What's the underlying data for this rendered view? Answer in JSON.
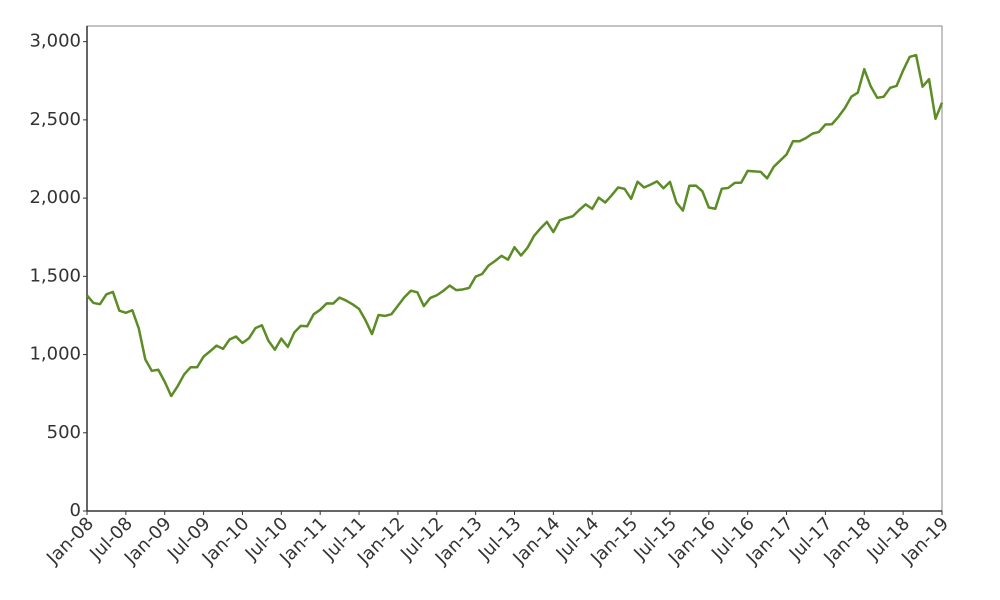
{
  "chart_data": {
    "type": "line",
    "x": [
      "2008-01",
      "2008-02",
      "2008-03",
      "2008-04",
      "2008-05",
      "2008-06",
      "2008-07",
      "2008-08",
      "2008-09",
      "2008-10",
      "2008-11",
      "2008-12",
      "2009-01",
      "2009-02",
      "2009-03",
      "2009-04",
      "2009-05",
      "2009-06",
      "2009-07",
      "2009-08",
      "2009-09",
      "2009-10",
      "2009-11",
      "2009-12",
      "2010-01",
      "2010-02",
      "2010-03",
      "2010-04",
      "2010-05",
      "2010-06",
      "2010-07",
      "2010-08",
      "2010-09",
      "2010-10",
      "2010-11",
      "2010-12",
      "2011-01",
      "2011-02",
      "2011-03",
      "2011-04",
      "2011-05",
      "2011-06",
      "2011-07",
      "2011-08",
      "2011-09",
      "2011-10",
      "2011-11",
      "2011-12",
      "2012-01",
      "2012-02",
      "2012-03",
      "2012-04",
      "2012-05",
      "2012-06",
      "2012-07",
      "2012-08",
      "2012-09",
      "2012-10",
      "2012-11",
      "2012-12",
      "2013-01",
      "2013-02",
      "2013-03",
      "2013-04",
      "2013-05",
      "2013-06",
      "2013-07",
      "2013-08",
      "2013-09",
      "2013-10",
      "2013-11",
      "2013-12",
      "2014-01",
      "2014-02",
      "2014-03",
      "2014-04",
      "2014-05",
      "2014-06",
      "2014-07",
      "2014-08",
      "2014-09",
      "2014-10",
      "2014-11",
      "2014-12",
      "2015-01",
      "2015-02",
      "2015-03",
      "2015-04",
      "2015-05",
      "2015-06",
      "2015-07",
      "2015-08",
      "2015-09",
      "2015-10",
      "2015-11",
      "2015-12",
      "2016-01",
      "2016-02",
      "2016-03",
      "2016-04",
      "2016-05",
      "2016-06",
      "2016-07",
      "2016-08",
      "2016-09",
      "2016-10",
      "2016-11",
      "2016-12",
      "2017-01",
      "2017-02",
      "2017-03",
      "2017-04",
      "2017-05",
      "2017-06",
      "2017-07",
      "2017-08",
      "2017-09",
      "2017-10",
      "2017-11",
      "2017-12",
      "2018-01",
      "2018-02",
      "2018-03",
      "2018-04",
      "2018-05",
      "2018-06",
      "2018-07",
      "2018-08",
      "2018-09",
      "2018-10",
      "2018-11",
      "2018-12",
      "2019-01"
    ],
    "values": [
      1378,
      1330,
      1322,
      1385,
      1400,
      1280,
      1267,
      1283,
      1166,
      969,
      896,
      903,
      826,
      735,
      798,
      873,
      919,
      919,
      987,
      1021,
      1057,
      1036,
      1096,
      1115,
      1074,
      1104,
      1169,
      1187,
      1089,
      1031,
      1102,
      1049,
      1141,
      1183,
      1181,
      1258,
      1286,
      1327,
      1326,
      1364,
      1345,
      1321,
      1292,
      1219,
      1131,
      1253,
      1247,
      1258,
      1312,
      1366,
      1408,
      1398,
      1310,
      1362,
      1379,
      1407,
      1441,
      1412,
      1416,
      1426,
      1498,
      1515,
      1569,
      1598,
      1631,
      1606,
      1686,
      1633,
      1682,
      1757,
      1806,
      1848,
      1783,
      1859,
      1872,
      1884,
      1924,
      1960,
      1931,
      2003,
      1972,
      2018,
      2068,
      2059,
      1995,
      2105,
      2068,
      2086,
      2107,
      2063,
      2104,
      1972,
      1920,
      2079,
      2080,
      2044,
      1940,
      1932,
      2060,
      2065,
      2097,
      2099,
      2174,
      2171,
      2168,
      2126,
      2199,
      2239,
      2279,
      2364,
      2363,
      2384,
      2412,
      2423,
      2470,
      2472,
      2519,
      2575,
      2648,
      2674,
      2824,
      2714,
      2641,
      2648,
      2705,
      2718,
      2816,
      2902,
      2914,
      2712,
      2760,
      2507,
      2610
    ],
    "color": "#5b8c25",
    "xlim": [
      "2008-01",
      "2019-01"
    ],
    "xticks": [
      {
        "value": "2008-01",
        "label": "Jan-08"
      },
      {
        "value": "2008-07",
        "label": "Jul-08"
      },
      {
        "value": "2009-01",
        "label": "Jan-09"
      },
      {
        "value": "2009-07",
        "label": "Jul-09"
      },
      {
        "value": "2010-01",
        "label": "Jan-10"
      },
      {
        "value": "2010-07",
        "label": "Jul-10"
      },
      {
        "value": "2011-01",
        "label": "Jan-11"
      },
      {
        "value": "2011-07",
        "label": "Jul-11"
      },
      {
        "value": "2012-01",
        "label": "Jan-12"
      },
      {
        "value": "2012-07",
        "label": "Jul-12"
      },
      {
        "value": "2013-01",
        "label": "Jan-13"
      },
      {
        "value": "2013-07",
        "label": "Jul-13"
      },
      {
        "value": "2014-01",
        "label": "Jan-14"
      },
      {
        "value": "2014-07",
        "label": "Jul-14"
      },
      {
        "value": "2015-01",
        "label": "Jan-15"
      },
      {
        "value": "2015-07",
        "label": "Jul-15"
      },
      {
        "value": "2016-01",
        "label": "Jan-16"
      },
      {
        "value": "2016-07",
        "label": "Jul-16"
      },
      {
        "value": "2017-01",
        "label": "Jan-17"
      },
      {
        "value": "2017-07",
        "label": "Jul-17"
      },
      {
        "value": "2018-01",
        "label": "Jan-18"
      },
      {
        "value": "2018-07",
        "label": "Jul-18"
      },
      {
        "value": "2019-01",
        "label": "Jan-19"
      }
    ],
    "ylim": [
      0,
      3100
    ],
    "yticks": [
      0,
      500,
      {
        "value": 1000,
        "label": "1,000"
      },
      {
        "value": 1500,
        "label": "1,500"
      },
      {
        "value": 2000,
        "label": "2,000"
      },
      {
        "value": 2500,
        "label": "2,500"
      },
      {
        "value": 3000,
        "label": "3,000"
      }
    ],
    "grid": false
  }
}
